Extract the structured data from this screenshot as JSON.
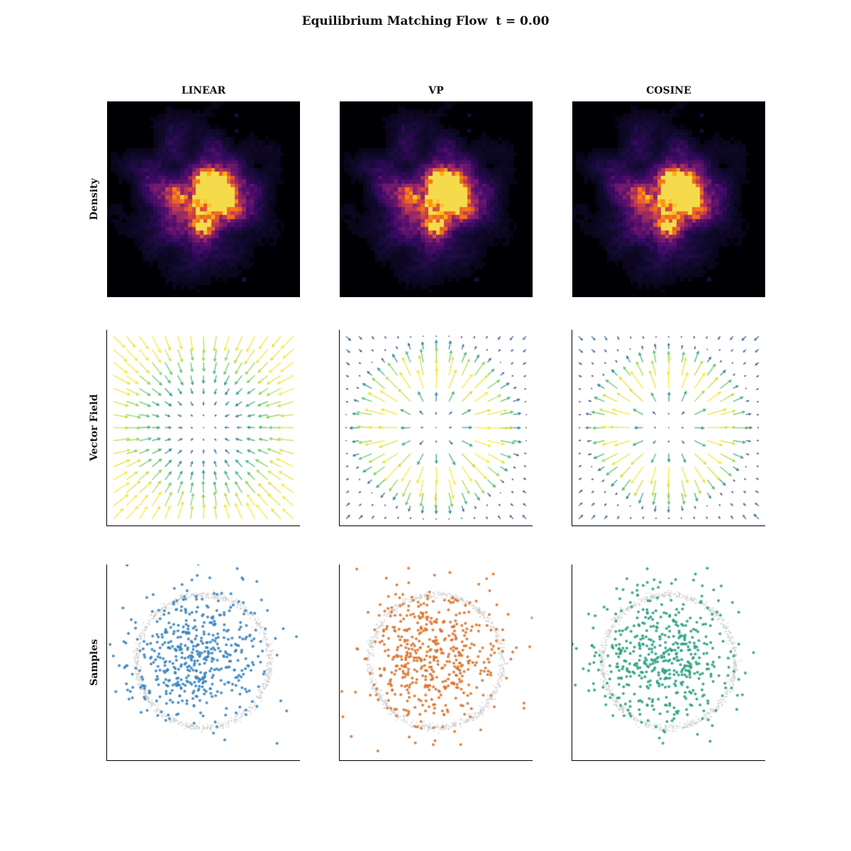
{
  "figure": {
    "title": "Equilibrium Matching Flow  t = 0.00",
    "background": "#ffffff",
    "columns": [
      "LINEAR",
      "VP",
      "COSINE"
    ],
    "rows": [
      "Density",
      "Vector Field",
      "Samples"
    ]
  },
  "chart_data": [
    {
      "type": "heatmap",
      "row_label": "Density",
      "colormap": "inferno",
      "grid_bins": 50,
      "blob": {
        "center": [
          0.48,
          0.47
        ],
        "sigma": 0.22
      },
      "hotspots": [
        [
          0.52,
          0.42,
          1.3,
          0.05
        ],
        [
          0.585,
          0.465,
          1.15,
          0.055
        ],
        [
          0.5,
          0.64,
          1.0,
          0.045
        ],
        [
          0.35,
          0.486,
          0.7,
          0.04
        ],
        [
          0.647,
          0.558,
          0.65,
          0.045
        ],
        [
          0.56,
          0.46,
          0.5,
          0.095
        ]
      ],
      "inferno_stops": [
        [
          0,
          "#000004"
        ],
        [
          0.13,
          "#140b34"
        ],
        [
          0.25,
          "#390963"
        ],
        [
          0.38,
          "#61136e"
        ],
        [
          0.5,
          "#85216b"
        ],
        [
          0.62,
          "#a92e5e"
        ],
        [
          0.72,
          "#cc4248"
        ],
        [
          0.8,
          "#e65d2f"
        ],
        [
          0.88,
          "#f78212"
        ],
        [
          0.95,
          "#fcae12"
        ],
        [
          1,
          "#f5db4c"
        ]
      ],
      "panels": [
        {
          "column": "LINEAR",
          "seed": 101
        },
        {
          "column": "VP",
          "seed": 101
        },
        {
          "column": "COSINE",
          "seed": 101
        }
      ]
    },
    {
      "type": "quiver",
      "row_label": "Vector Field",
      "grid": 15,
      "colormap": "viridis",
      "viridis_stops": [
        [
          0,
          "#440154"
        ],
        [
          0.25,
          "#3b528b"
        ],
        [
          0.5,
          "#21918c"
        ],
        [
          0.75,
          "#5ec962"
        ],
        [
          1,
          "#fde725"
        ]
      ],
      "panels": [
        {
          "column": "LINEAR",
          "field": "inward-linear",
          "seed": 201,
          "max_len": 24
        },
        {
          "column": "VP",
          "field": "ring-attractor",
          "seed": 202,
          "zero_radius": 0.95,
          "sharpness": 1.0,
          "outer_slope": 0.58,
          "max_len": 27
        },
        {
          "column": "COSINE",
          "field": "ring-attractor",
          "seed": 203,
          "zero_radius": 0.92,
          "sharpness": 1.2,
          "outer_slope": 0.62,
          "max_len": 27
        }
      ]
    },
    {
      "type": "scatter",
      "row_label": "Samples",
      "target_ring": {
        "color": "#bdbdbd",
        "alpha": 0.55,
        "center": [
          0.5,
          0.495
        ],
        "radius": 0.345,
        "radial_noise": 0.009,
        "count": 800,
        "dot_radius": 1.1
      },
      "panels": [
        {
          "column": "LINEAR",
          "color": "#3984bf",
          "seed": 301,
          "count": 500,
          "center": [
            0.47,
            0.47
          ],
          "sigma": 0.175,
          "dot_radius": 2
        },
        {
          "column": "VP",
          "color": "#d9742e",
          "seed": 302,
          "count": 500,
          "center": [
            0.48,
            0.47
          ],
          "sigma": 0.175,
          "dot_radius": 2
        },
        {
          "column": "COSINE",
          "color": "#2aa17e",
          "seed": 303,
          "count": 500,
          "center": [
            0.47,
            0.48
          ],
          "sigma": 0.175,
          "dot_radius": 2
        }
      ]
    }
  ]
}
